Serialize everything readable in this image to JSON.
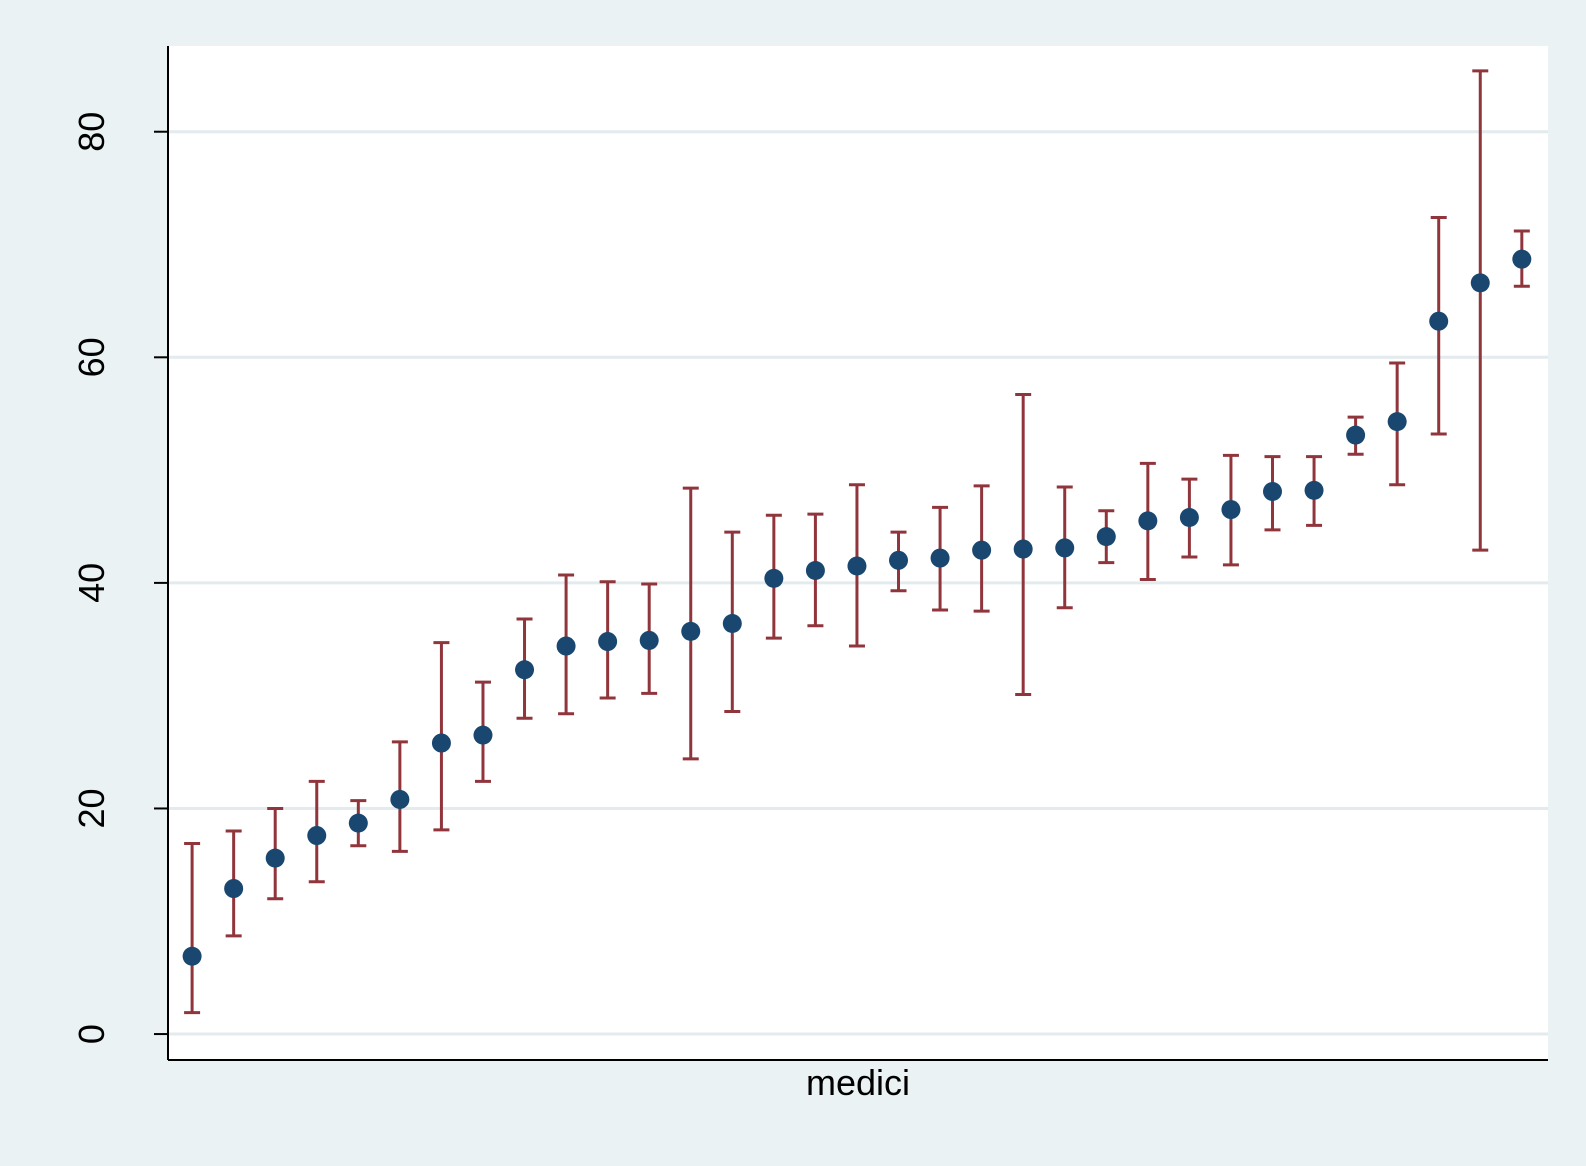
{
  "chart_data": {
    "type": "errorbar",
    "x_label": "medici",
    "x": [
      1,
      2,
      3,
      4,
      5,
      6,
      7,
      8,
      9,
      10,
      11,
      12,
      13,
      14,
      15,
      16,
      17,
      18,
      19,
      20,
      21,
      22,
      23,
      24,
      25,
      26,
      27,
      28,
      29,
      30,
      31,
      32,
      33
    ],
    "values": [
      6.9,
      12.9,
      15.6,
      17.6,
      18.7,
      20.8,
      25.8,
      26.5,
      32.3,
      34.4,
      34.8,
      34.9,
      35.7,
      36.4,
      40.4,
      41.1,
      41.5,
      42.0,
      42.2,
      42.9,
      43.0,
      43.1,
      44.1,
      45.5,
      45.8,
      46.5,
      48.1,
      48.2,
      53.1,
      54.3,
      63.2,
      66.6,
      68.7
    ],
    "upper": [
      16.9,
      18.0,
      20.0,
      22.4,
      20.7,
      25.9,
      34.7,
      31.2,
      36.8,
      40.7,
      40.1,
      39.9,
      48.4,
      44.5,
      46.0,
      46.1,
      48.7,
      44.5,
      46.7,
      48.6,
      56.7,
      48.5,
      46.4,
      50.6,
      49.2,
      51.3,
      51.2,
      51.2,
      54.7,
      59.5,
      72.4,
      85.4,
      71.2
    ],
    "lower": [
      1.9,
      8.7,
      12.0,
      13.5,
      16.7,
      16.2,
      18.1,
      22.4,
      28.0,
      28.4,
      29.8,
      30.2,
      24.4,
      28.6,
      35.1,
      36.2,
      34.4,
      39.3,
      37.6,
      37.5,
      30.1,
      37.8,
      41.8,
      40.3,
      42.3,
      41.6,
      44.7,
      45.1,
      51.4,
      48.7,
      53.2,
      42.9,
      66.3
    ],
    "point_color": "#1a476f",
    "bar_color": "#90353b",
    "xlim": [
      0.42,
      33.63
    ],
    "ylim": [
      -2.3,
      87.6
    ],
    "yticks": [
      0,
      20,
      40,
      60,
      80
    ],
    "grid": true
  }
}
